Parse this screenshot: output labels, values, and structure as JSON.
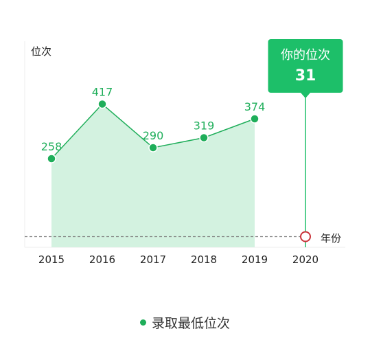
{
  "chart_data": {
    "type": "area",
    "x_categories": [
      "2015",
      "2016",
      "2017",
      "2018",
      "2019",
      "2020"
    ],
    "series": [
      {
        "name": "录取最低位次",
        "x": [
          "2015",
          "2016",
          "2017",
          "2018",
          "2019"
        ],
        "values": [
          258,
          417,
          290,
          319,
          374
        ]
      }
    ],
    "ylabel": "位次",
    "xlabel": "年份",
    "ylim": [
      0,
      600
    ],
    "grid": false,
    "legend_position": "bottom",
    "marker": {
      "title": "你的位次",
      "x": "2020",
      "value": 31
    },
    "colors": {
      "line": "#1fae5a",
      "fill": "#d3f2e0",
      "callout": "#1dbf69",
      "marker_ring": "#c9343a",
      "reference_line": "#7f7f7f"
    }
  }
}
